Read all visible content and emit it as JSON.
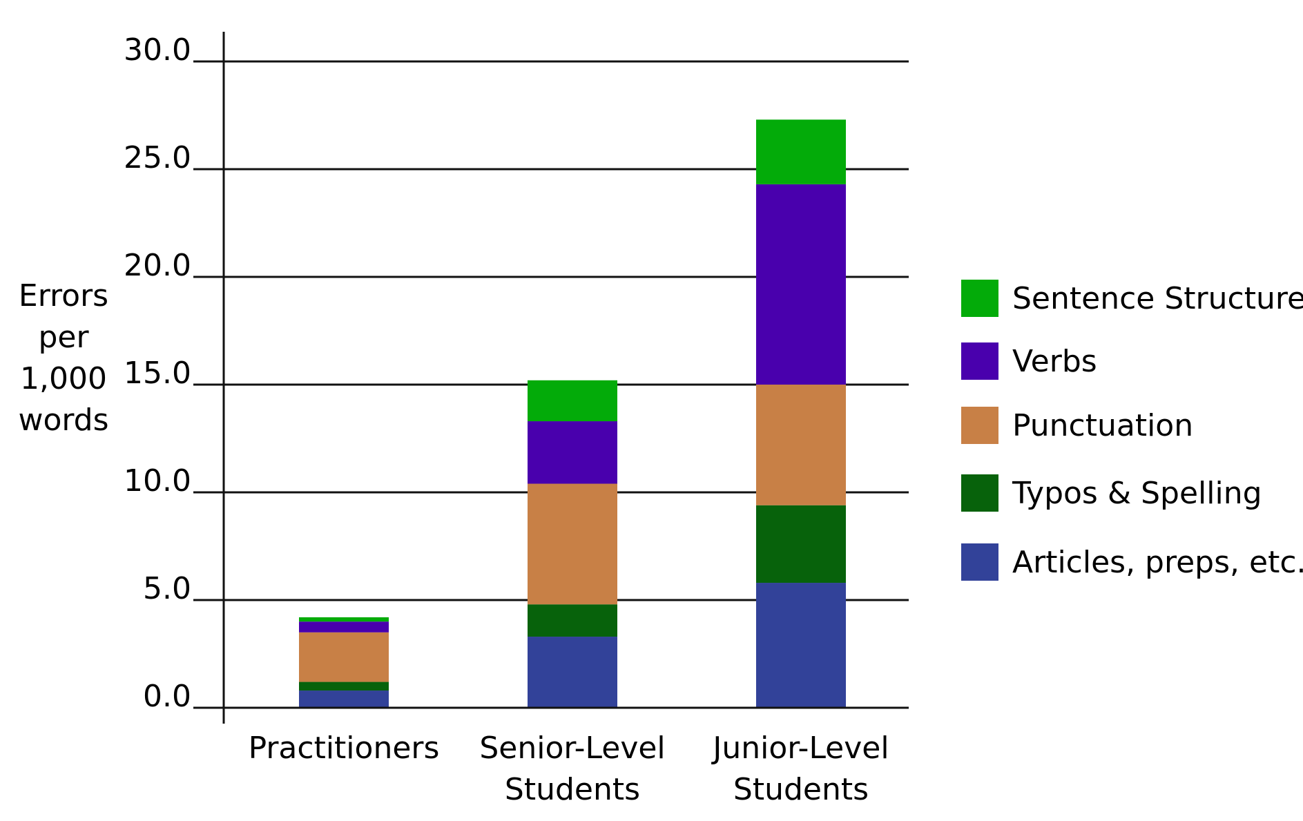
{
  "chart_data": {
    "type": "bar",
    "stacked": true,
    "title": "",
    "ylabel_lines": [
      "Errors",
      "per",
      "1,000",
      "words"
    ],
    "xlabel": "",
    "ylim": [
      0,
      30
    ],
    "y_ticks": [
      "0.0",
      "5.0",
      "10.0",
      "15.0",
      "20.0",
      "25.0",
      "30.0"
    ],
    "grid": true,
    "legend_position": "right",
    "categories": [
      {
        "lines": [
          "Practitioners"
        ]
      },
      {
        "lines": [
          "Senior-Level",
          "Students"
        ]
      },
      {
        "lines": [
          "Junior-Level",
          "Students"
        ]
      }
    ],
    "series": [
      {
        "name": "Articles, preps, etc.",
        "color": "#324299",
        "values": [
          0.8,
          3.3,
          5.8
        ]
      },
      {
        "name": "Typos & Spelling",
        "color": "#07620b",
        "values": [
          0.4,
          1.5,
          3.6
        ]
      },
      {
        "name": "Punctuation",
        "color": "#c88046",
        "values": [
          2.3,
          5.6,
          5.6
        ]
      },
      {
        "name": "Verbs",
        "color": "#4900ad",
        "values": [
          0.5,
          2.9,
          9.3
        ]
      },
      {
        "name": "Sentence Structure",
        "color": "#03ab09",
        "values": [
          0.2,
          1.9,
          3.0
        ]
      }
    ]
  }
}
